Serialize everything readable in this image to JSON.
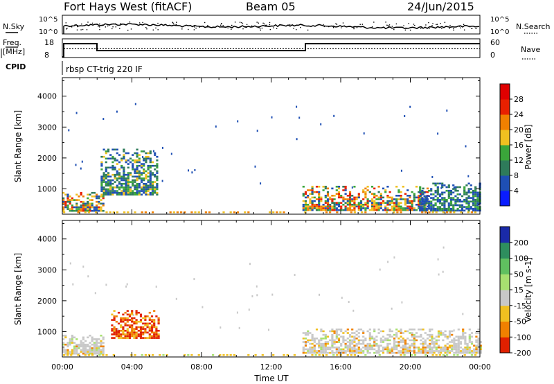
{
  "header": {
    "station": "Fort Hays West (fitACF)",
    "beam": "Beam 05",
    "date": "24/Jun/2015"
  },
  "noise_panel": {
    "left_label": "N.Sky",
    "right_label": "N.Search",
    "ticks": [
      "10^5",
      "10^0"
    ],
    "ticks_right": [
      "10^5",
      "10^0"
    ]
  },
  "freq_panel": {
    "left_label_top": "Freq.",
    "left_label_bottom": "[MHz]",
    "left_ticks": [
      "18",
      "8"
    ],
    "right_label": "Nave",
    "right_ticks": [
      "60",
      "0"
    ]
  },
  "cpid": {
    "label": "CPID",
    "program": "rbsp CT-trig 220 IF"
  },
  "chart_data": [
    {
      "type": "heatmap",
      "panel": "power",
      "ylabel": "Slant Range [km]",
      "xlabel": "",
      "xlim": [
        0,
        24
      ],
      "ylim": [
        180,
        4600
      ],
      "yticks": [
        "1000",
        "2000",
        "3000",
        "4000"
      ],
      "colorbar": {
        "label": "Power [dB]",
        "ticks": [
          "4",
          "8",
          "12",
          "16",
          "20",
          "24",
          "28"
        ],
        "colors": [
          "#0a1cff",
          "#1e4fb4",
          "#2e7b5a",
          "#3aa53a",
          "#f0c020",
          "#f08000",
          "#e82000",
          "#e00000"
        ]
      },
      "regions": [
        {
          "t": [
            0.0,
            2.3
          ],
          "r": [
            300,
            900
          ],
          "level": "mixed"
        },
        {
          "t": [
            2.2,
            5.5
          ],
          "r": [
            800,
            2300
          ],
          "level": "low-mid"
        },
        {
          "t": [
            13.8,
            21.0
          ],
          "r": [
            300,
            1100
          ],
          "level": "mixed"
        },
        {
          "t": [
            20.5,
            24.0
          ],
          "r": [
            300,
            1200
          ],
          "level": "low"
        }
      ]
    },
    {
      "type": "heatmap",
      "panel": "velocity",
      "ylabel": "Slant Range [km]",
      "xlabel": "Time UT",
      "xlim": [
        0,
        24
      ],
      "ylim": [
        180,
        4600
      ],
      "yticks": [
        "1000",
        "2000",
        "3000",
        "4000"
      ],
      "xticks": [
        "00:00",
        "04:00",
        "08:00",
        "12:00",
        "16:00",
        "20:00",
        "00:00"
      ],
      "colorbar": {
        "label": "Velocity [m s-1]",
        "ticks": [
          "200",
          "100",
          "50",
          "15",
          "-15",
          "-50",
          "-100",
          "-200"
        ],
        "colors": [
          "#1a2aa8",
          "#2e8e5e",
          "#60c060",
          "#a8e070",
          "#c8c8c8",
          "#f0c020",
          "#f08000",
          "#e02000"
        ]
      },
      "regions": [
        {
          "t": [
            0.0,
            2.3
          ],
          "r": [
            300,
            900
          ],
          "level": "near-zero"
        },
        {
          "t": [
            2.8,
            5.5
          ],
          "r": [
            800,
            1700
          ],
          "level": "negative"
        },
        {
          "t": [
            13.8,
            24.0
          ],
          "r": [
            300,
            1100
          ],
          "level": "near-zero"
        }
      ]
    }
  ]
}
